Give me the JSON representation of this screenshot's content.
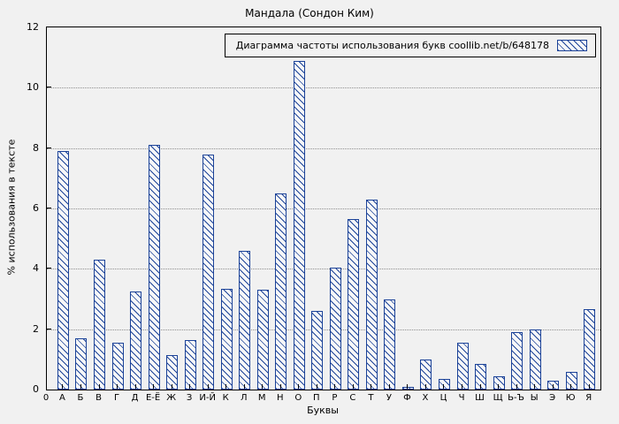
{
  "figure": {
    "title": "Мандала (Сондон Ким)",
    "x_axis_title": "Буквы",
    "y_axis_title": "% использования в тексте",
    "legend_label": "Диаграмма частоты использования букв coollib.net/b/648178",
    "origin_label": "0"
  },
  "chart_data": {
    "type": "bar",
    "title": "Мандала (Сондон Ким)",
    "xlabel": "Буквы",
    "ylabel": "% использования в тексте",
    "legend": "Диаграмма частоты использования букв coollib.net/b/648178",
    "legend_position": "top-right",
    "grid": true,
    "ylim": [
      0,
      12
    ],
    "yticks": [
      0,
      2,
      4,
      6,
      8,
      10,
      12
    ],
    "bar_color": "#1b4298",
    "categories": [
      "А",
      "Б",
      "В",
      "Г",
      "Д",
      "Е-Ё",
      "Ж",
      "З",
      "И-Й",
      "К",
      "Л",
      "М",
      "Н",
      "О",
      "П",
      "Р",
      "С",
      "Т",
      "У",
      "Ф",
      "Х",
      "Ц",
      "Ч",
      "Ш",
      "Щ",
      "Ь-Ъ",
      "Ы",
      "Э",
      "Ю",
      "Я"
    ],
    "values": [
      7.9,
      1.7,
      4.3,
      1.55,
      3.25,
      8.1,
      1.15,
      1.65,
      7.8,
      3.35,
      4.6,
      3.3,
      6.5,
      10.9,
      2.6,
      4.05,
      5.65,
      6.3,
      3.0,
      0.1,
      1.0,
      0.35,
      1.55,
      0.85,
      0.45,
      1.9,
      2.0,
      0.3,
      0.6,
      2.65
    ]
  }
}
